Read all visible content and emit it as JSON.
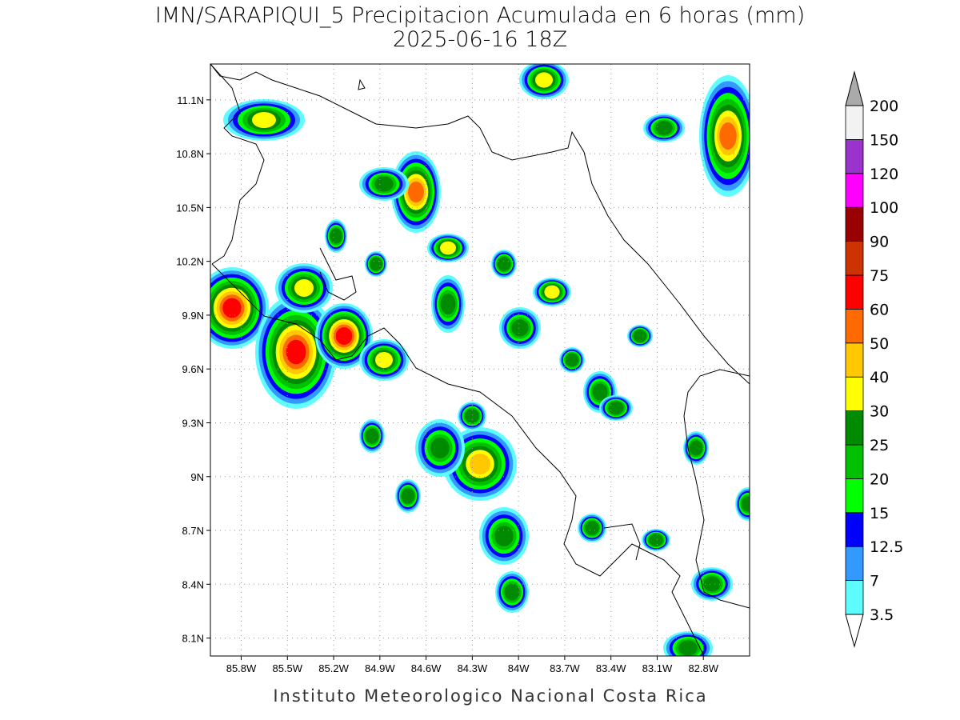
{
  "chart_data": {
    "type": "filled-contour-map",
    "title": "IMN/SARAPIQUI_5 Precipitacion Acumulada en 6 horas (mm)",
    "subtitle": "2025-06-16 18Z",
    "footer": "Instituto Meteorologico Nacional Costa Rica",
    "xlim": [
      -86.0,
      -82.5
    ],
    "ylim": [
      8.0,
      11.3
    ],
    "xticks": [
      {
        "value": -85.8,
        "label": "85.8W"
      },
      {
        "value": -85.5,
        "label": "85.5W"
      },
      {
        "value": -85.2,
        "label": "85.2W"
      },
      {
        "value": -84.9,
        "label": "84.9W"
      },
      {
        "value": -84.6,
        "label": "84.6W"
      },
      {
        "value": -84.3,
        "label": "84.3W"
      },
      {
        "value": -84.0,
        "label": "84W"
      },
      {
        "value": -83.7,
        "label": "83.7W"
      },
      {
        "value": -83.4,
        "label": "83.4W"
      },
      {
        "value": -83.1,
        "label": "83.1W"
      },
      {
        "value": -82.8,
        "label": "82.8W"
      }
    ],
    "yticks": [
      {
        "value": 8.1,
        "label": "8.1N"
      },
      {
        "value": 8.4,
        "label": "8.4N"
      },
      {
        "value": 8.7,
        "label": "8.7N"
      },
      {
        "value": 9.0,
        "label": "9N"
      },
      {
        "value": 9.3,
        "label": "9.3N"
      },
      {
        "value": 9.6,
        "label": "9.6N"
      },
      {
        "value": 9.9,
        "label": "9.9N"
      },
      {
        "value": 10.2,
        "label": "10.2N"
      },
      {
        "value": 10.5,
        "label": "10.5N"
      },
      {
        "value": 10.8,
        "label": "10.8N"
      },
      {
        "value": 11.1,
        "label": "11.1N"
      }
    ],
    "grid": true,
    "colorbar": {
      "levels": [
        3.5,
        7,
        12.5,
        15,
        20,
        25,
        30,
        40,
        50,
        60,
        75,
        90,
        100,
        120,
        150,
        200
      ],
      "colors": [
        "#5ffcff",
        "#3399ff",
        "#0000ff",
        "#00ff00",
        "#00c000",
        "#008a00",
        "#ffff00",
        "#ffc800",
        "#ff6a00",
        "#ff0000",
        "#cc3300",
        "#990000",
        "#ff00ff",
        "#9933cc",
        "#f2f2f2"
      ],
      "under_color": "#ffffff",
      "over_color": "#aaaaaa"
    }
  }
}
